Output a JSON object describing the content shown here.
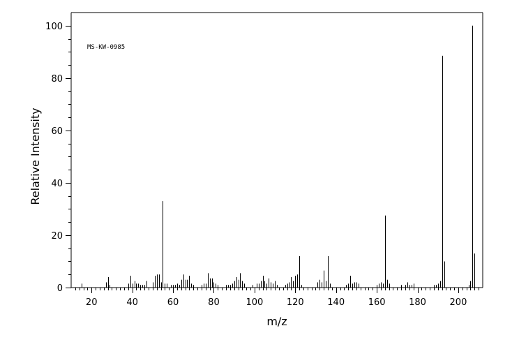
{
  "chart_data": {
    "type": "bar",
    "title": "",
    "annotation": "MS-KW-0985",
    "xlabel": "m/z",
    "ylabel": "Relative Intensity",
    "xlim": [
      10,
      212
    ],
    "ylim": [
      0,
      105
    ],
    "xticks": [
      20,
      40,
      60,
      80,
      100,
      120,
      140,
      160,
      180,
      200
    ],
    "yticks": [
      0,
      20,
      40,
      60,
      80,
      100
    ],
    "grid": false,
    "series": [
      {
        "x": [
          15,
          27,
          28,
          29,
          38,
          39,
          40,
          41,
          42,
          43,
          44,
          45,
          46,
          47,
          50,
          51,
          52,
          53,
          54,
          55,
          56,
          57,
          59,
          60,
          61,
          62,
          63,
          64,
          65,
          66,
          67,
          68,
          69,
          70,
          74,
          75,
          76,
          77,
          78,
          79,
          80,
          81,
          82,
          86,
          87,
          88,
          89,
          90,
          91,
          92,
          93,
          94,
          95,
          99,
          101,
          102,
          103,
          104,
          105,
          106,
          107,
          108,
          109,
          110,
          111,
          115,
          116,
          117,
          118,
          119,
          120,
          121,
          122,
          123,
          131,
          132,
          133,
          134,
          135,
          136,
          137,
          145,
          146,
          147,
          148,
          149,
          150,
          151,
          160,
          161,
          162,
          163,
          164,
          165,
          166,
          172,
          174,
          175,
          176,
          177,
          178,
          188,
          189,
          190,
          191,
          192,
          193,
          205,
          206,
          207,
          208
        ],
        "values": [
          1.5,
          2,
          4,
          1,
          1.5,
          4.5,
          1.5,
          2.5,
          1.5,
          1.5,
          1,
          1,
          1,
          2.5,
          2,
          4.5,
          5,
          5,
          2,
          33,
          1.5,
          1.5,
          1,
          1,
          1,
          1.5,
          1,
          3,
          5,
          3,
          3,
          4.5,
          1.5,
          1,
          1,
          1.5,
          1.5,
          5.5,
          3.5,
          3.5,
          2,
          1.5,
          1,
          1,
          1,
          1,
          1.5,
          2.5,
          4,
          3,
          5.5,
          2.5,
          1.5,
          1,
          1.5,
          1.5,
          2.5,
          4.5,
          2.5,
          1.5,
          3.5,
          2,
          1.5,
          2.5,
          1,
          1,
          1.5,
          2,
          4,
          2.5,
          4.5,
          5,
          12,
          1,
          2,
          3,
          2,
          6.5,
          2.5,
          12,
          1.5,
          1,
          1.5,
          4.5,
          1.5,
          2,
          2,
          1.5,
          1,
          1.5,
          2,
          1.5,
          27.5,
          3,
          1.5,
          1,
          1,
          2,
          1,
          1,
          1.5,
          1,
          1,
          1.5,
          2.5,
          88.5,
          10,
          1,
          2.5,
          100,
          13
        ]
      }
    ]
  }
}
